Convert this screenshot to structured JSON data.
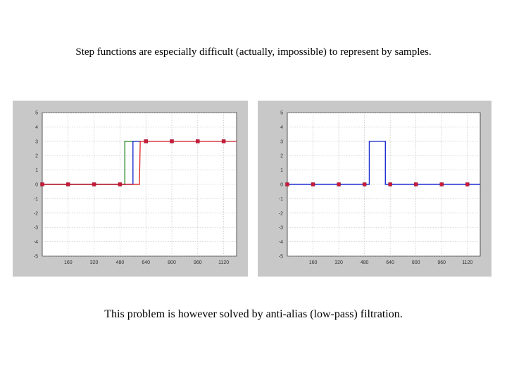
{
  "captions": {
    "top": "Step functions are especially difficult (actually, impossible) to represent by samples.",
    "bottom": "This problem is however solved by anti-alias (low-pass) filtration."
  },
  "chart_data": [
    {
      "type": "line",
      "title": "",
      "xlabel": "",
      "ylabel": "",
      "ylim": [
        -5,
        5
      ],
      "xlim": [
        0,
        1200
      ],
      "y_ticks": [
        "5",
        "4",
        "3",
        "2",
        "1",
        "0",
        "-1",
        "-2",
        "-3",
        "-4",
        "-5"
      ],
      "x_ticks": [
        "160",
        "320",
        "480",
        "640",
        "800",
        "960",
        "1120"
      ],
      "x_tick_values": [
        160,
        320,
        480,
        640,
        800,
        960,
        1120
      ],
      "grid": true,
      "series": [
        {
          "color": "#2e8b2e",
          "x": [
            0,
            510,
            510,
            1200
          ],
          "y": [
            0,
            0,
            3,
            3
          ]
        },
        {
          "color": "#1f2fd0",
          "x": [
            0,
            560,
            560,
            1200
          ],
          "y": [
            0,
            0,
            3,
            3
          ]
        },
        {
          "color": "#e03030",
          "x": [
            0,
            600,
            605,
            1200
          ],
          "y": [
            0,
            0,
            3,
            3
          ]
        }
      ],
      "samples": {
        "color": "#cc1a3a",
        "x": [
          0,
          160,
          320,
          480,
          640,
          800,
          960,
          1120
        ],
        "y": [
          0,
          0,
          0,
          0,
          3,
          3,
          3,
          3
        ]
      }
    },
    {
      "type": "line",
      "title": "",
      "xlabel": "",
      "ylabel": "",
      "ylim": [
        -5,
        5
      ],
      "xlim": [
        0,
        1200
      ],
      "y_ticks": [
        "5",
        "4",
        "3",
        "2",
        "1",
        "0",
        "-1",
        "-2",
        "-3",
        "-4",
        "-5"
      ],
      "x_ticks": [
        "160",
        "320",
        "480",
        "640",
        "800",
        "960",
        "1120"
      ],
      "x_tick_values": [
        160,
        320,
        480,
        640,
        800,
        960,
        1120
      ],
      "grid": true,
      "series": [
        {
          "color": "#1f2fd0",
          "x": [
            0,
            510,
            510,
            610,
            610,
            1200
          ],
          "y": [
            0,
            0,
            3,
            3,
            0,
            0
          ]
        }
      ],
      "samples": {
        "color": "#cc1a3a",
        "x": [
          0,
          160,
          320,
          480,
          640,
          800,
          960,
          1120
        ],
        "y": [
          0,
          0,
          0,
          0,
          0,
          0,
          0,
          0
        ]
      }
    }
  ]
}
